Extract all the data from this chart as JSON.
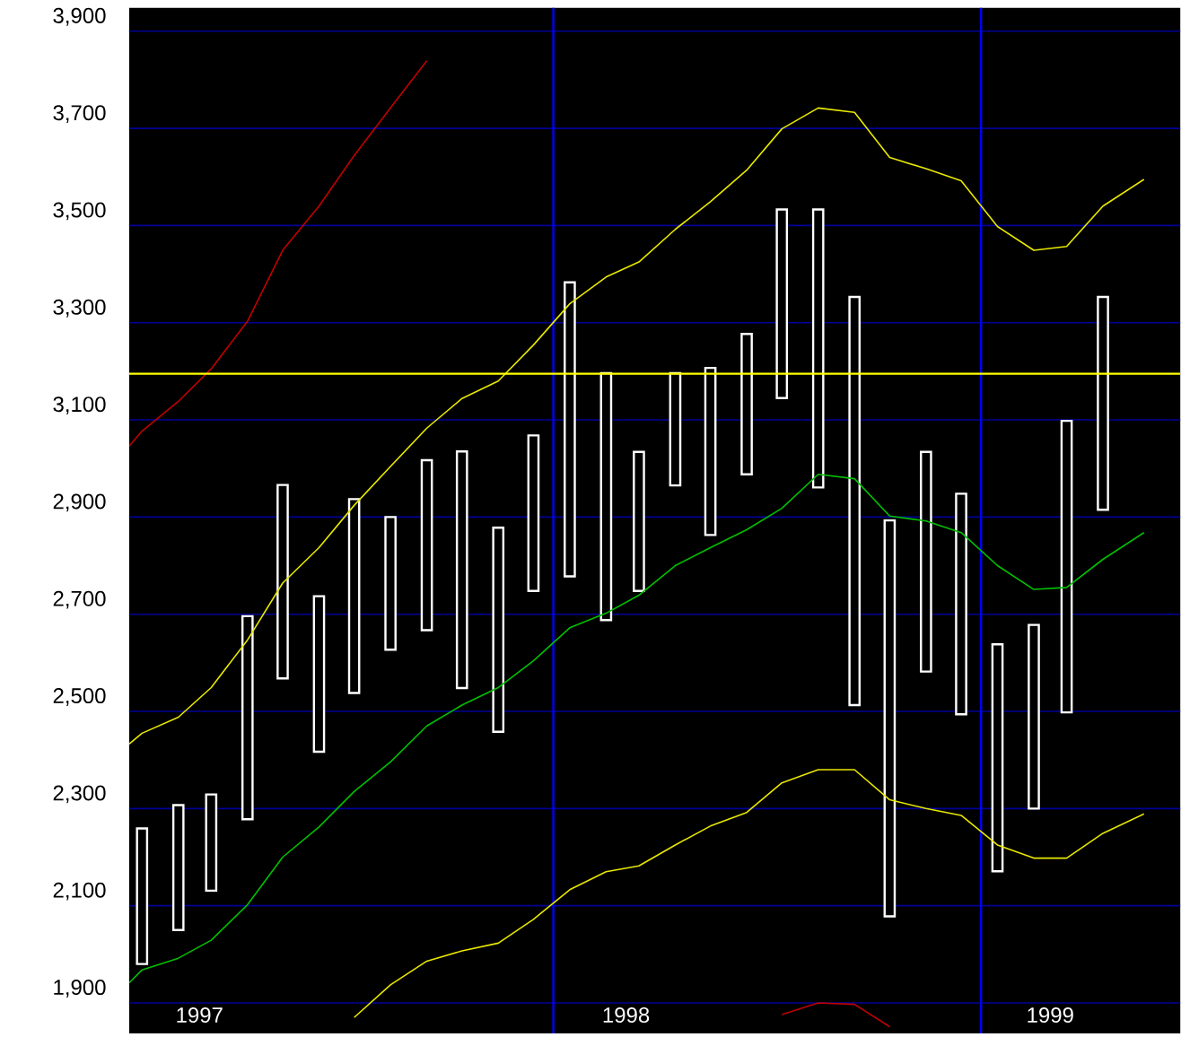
{
  "chart_data": {
    "type": "bar",
    "xlim": [
      "1997-01-04",
      "1999-06-20"
    ],
    "ylim": [
      1837,
      3948
    ],
    "yticks": [
      {
        "value": 1900,
        "label": "1,900"
      },
      {
        "value": 2100,
        "label": "2,100"
      },
      {
        "value": 2300,
        "label": "2,300"
      },
      {
        "value": 2500,
        "label": "2,500"
      },
      {
        "value": 2700,
        "label": "2,700"
      },
      {
        "value": 2900,
        "label": "2,900"
      },
      {
        "value": 3100,
        "label": "3,100"
      },
      {
        "value": 3300,
        "label": "3,300"
      },
      {
        "value": 3500,
        "label": "3,500"
      },
      {
        "value": 3700,
        "label": "3,700"
      },
      {
        "value": 3900,
        "label": "3,900"
      }
    ],
    "xticks": [
      {
        "value": "1997-03-05",
        "label": "1997"
      },
      {
        "value": "1998-01-01",
        "label": null
      },
      {
        "value": "1998-03-04",
        "label": "1998"
      },
      {
        "value": "1999-01-01",
        "label": null
      },
      {
        "value": "1999-03-01",
        "label": "1999"
      }
    ],
    "grid": true,
    "ref_lines": [
      {
        "axis": "y",
        "value": 3195,
        "color": "#ffff00"
      }
    ],
    "series": [
      {
        "color": "#ffffff",
        "x": [
          "1997-01-15",
          "1997-02-15",
          "1997-03-15",
          "1997-04-15",
          "1997-05-15",
          "1997-06-15",
          "1997-07-15",
          "1997-08-15",
          "1997-09-15",
          "1997-10-15",
          "1997-11-15",
          "1997-12-15",
          "1998-01-15",
          "1998-02-15",
          "1998-03-15",
          "1998-04-15",
          "1998-05-15",
          "1998-06-15",
          "1998-07-15",
          "1998-08-15",
          "1998-09-15",
          "1998-10-15",
          "1998-11-15",
          "1998-12-15",
          "1999-01-15",
          "1999-02-15",
          "1999-03-15",
          "1999-04-15"
        ],
        "base": [
          1980,
          2050,
          2131,
          2278,
          2568,
          2417,
          2538,
          2627,
          2667,
          2548,
          2458,
          2748,
          2778,
          2688,
          2748,
          2965,
          2863,
          2988,
          3145,
          2961,
          2513,
          2078,
          2582,
          2494,
          2171,
          2300,
          2498,
          2915
        ],
        "values": [
          279,
          257,
          198,
          418,
          398,
          320,
          399,
          273,
          350,
          487,
          420,
          320,
          605,
          508,
          286,
          231,
          344,
          289,
          388,
          572,
          840,
          815,
          452,
          454,
          467,
          378,
          600,
          438
        ]
      },
      {
        "type": "line",
        "color": "#c00000",
        "x": [
          "1997-01-04",
          "1997-01-15",
          "1997-02-15",
          "1997-03-15",
          "1997-04-15",
          "1997-05-15",
          "1997-06-15",
          "1997-07-15",
          "1997-08-15",
          "1997-09-15"
        ],
        "values": [
          3046,
          3077,
          3138,
          3205,
          3303,
          3449,
          3540,
          3644,
          3742,
          3839
        ]
      },
      {
        "type": "line",
        "color": "#e8e800",
        "x": [
          "1997-01-04",
          "1997-01-15",
          "1997-02-15",
          "1997-03-15",
          "1997-04-15",
          "1997-05-15",
          "1997-06-15",
          "1997-07-15",
          "1997-08-15",
          "1997-09-15",
          "1997-10-15",
          "1997-11-15",
          "1997-12-15",
          "1998-01-15",
          "1998-02-15",
          "1998-03-15",
          "1998-04-15",
          "1998-05-15",
          "1998-06-15",
          "1998-07-15",
          "1998-08-15",
          "1998-09-15",
          "1998-10-15",
          "1998-11-15",
          "1998-12-15",
          "1999-01-15",
          "1999-02-15",
          "1999-03-15",
          "1999-04-15",
          "1999-05-20"
        ],
        "values": [
          2433,
          2455,
          2488,
          2549,
          2647,
          2764,
          2837,
          2924,
          3004,
          3083,
          3144,
          3180,
          3254,
          3339,
          3394,
          3425,
          3492,
          3549,
          3614,
          3699,
          3742,
          3733,
          3640,
          3617,
          3592,
          3498,
          3449,
          3457,
          3540,
          3595
        ]
      },
      {
        "type": "line",
        "color": "#00c000",
        "x": [
          "1997-01-04",
          "1997-01-15",
          "1997-02-15",
          "1997-03-15",
          "1997-04-15",
          "1997-05-15",
          "1997-06-15",
          "1997-07-15",
          "1997-08-15",
          "1997-09-15",
          "1997-10-15",
          "1997-11-15",
          "1997-12-15",
          "1998-01-15",
          "1998-02-15",
          "1998-03-15",
          "1998-04-15",
          "1998-05-15",
          "1998-06-15",
          "1998-07-15",
          "1998-08-15",
          "1998-09-15",
          "1998-10-15",
          "1998-11-15",
          "1998-12-15",
          "1999-01-15",
          "1999-02-15",
          "1999-03-15",
          "1999-04-15",
          "1999-05-20"
        ],
        "values": [
          1941,
          1968,
          1992,
          2029,
          2102,
          2200,
          2262,
          2335,
          2396,
          2470,
          2513,
          2549,
          2604,
          2672,
          2702,
          2739,
          2800,
          2837,
          2874,
          2918,
          2988,
          2979,
          2902,
          2892,
          2868,
          2800,
          2751,
          2755,
          2813,
          2868
        ]
      },
      {
        "type": "line",
        "color": "#e8e800",
        "x": [
          "1997-07-15",
          "1997-08-15",
          "1997-09-15",
          "1997-10-15",
          "1997-11-15",
          "1997-12-15",
          "1998-01-15",
          "1998-02-15",
          "1998-03-15",
          "1998-04-15",
          "1998-05-15",
          "1998-06-15",
          "1998-07-15",
          "1998-08-15",
          "1998-09-15",
          "1998-10-15",
          "1998-11-15",
          "1998-12-15",
          "1999-01-15",
          "1999-02-15",
          "1999-03-15",
          "1999-04-15",
          "1999-05-20"
        ],
        "values": [
          1870,
          1937,
          1986,
          2007,
          2023,
          2072,
          2133,
          2170,
          2182,
          2225,
          2264,
          2292,
          2353,
          2380,
          2380,
          2318,
          2300,
          2286,
          2225,
          2198,
          2198,
          2249,
          2289
        ]
      },
      {
        "type": "line",
        "color": "#c00000",
        "x": [
          "1998-07-15",
          "1998-08-15",
          "1998-09-15",
          "1998-10-15"
        ],
        "values": [
          1876,
          1900,
          1897,
          1851
        ]
      }
    ]
  }
}
